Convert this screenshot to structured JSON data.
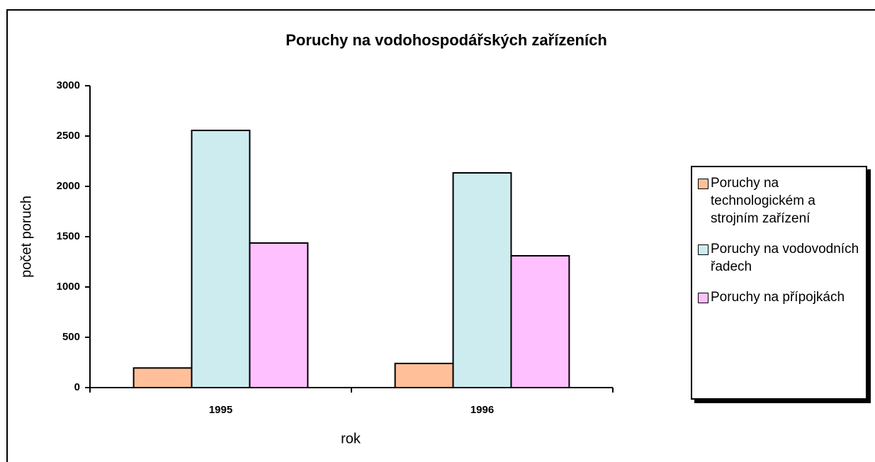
{
  "chart_data": {
    "type": "bar",
    "title": "Poruchy na vodohospodářských zařízeních",
    "x_label": "rok",
    "y_label": "počet poruch",
    "categories": [
      "1995",
      "1996"
    ],
    "series": [
      {
        "name": "Poruchy na technologickém a strojním zařízení",
        "color": "#ffc099",
        "values": [
          195,
          240
        ]
      },
      {
        "name": "Poruchy na vodovodních řadech",
        "color": "#ccecf0",
        "values": [
          2556,
          2134
        ]
      },
      {
        "name": "Poruchy na přípojkách",
        "color": "#ffc0ff",
        "values": [
          1437,
          1310
        ]
      }
    ],
    "ylim": [
      0,
      3000
    ],
    "yticks": [
      0,
      500,
      1000,
      1500,
      2000,
      2500,
      3000
    ],
    "grid": false,
    "legend": "right"
  }
}
